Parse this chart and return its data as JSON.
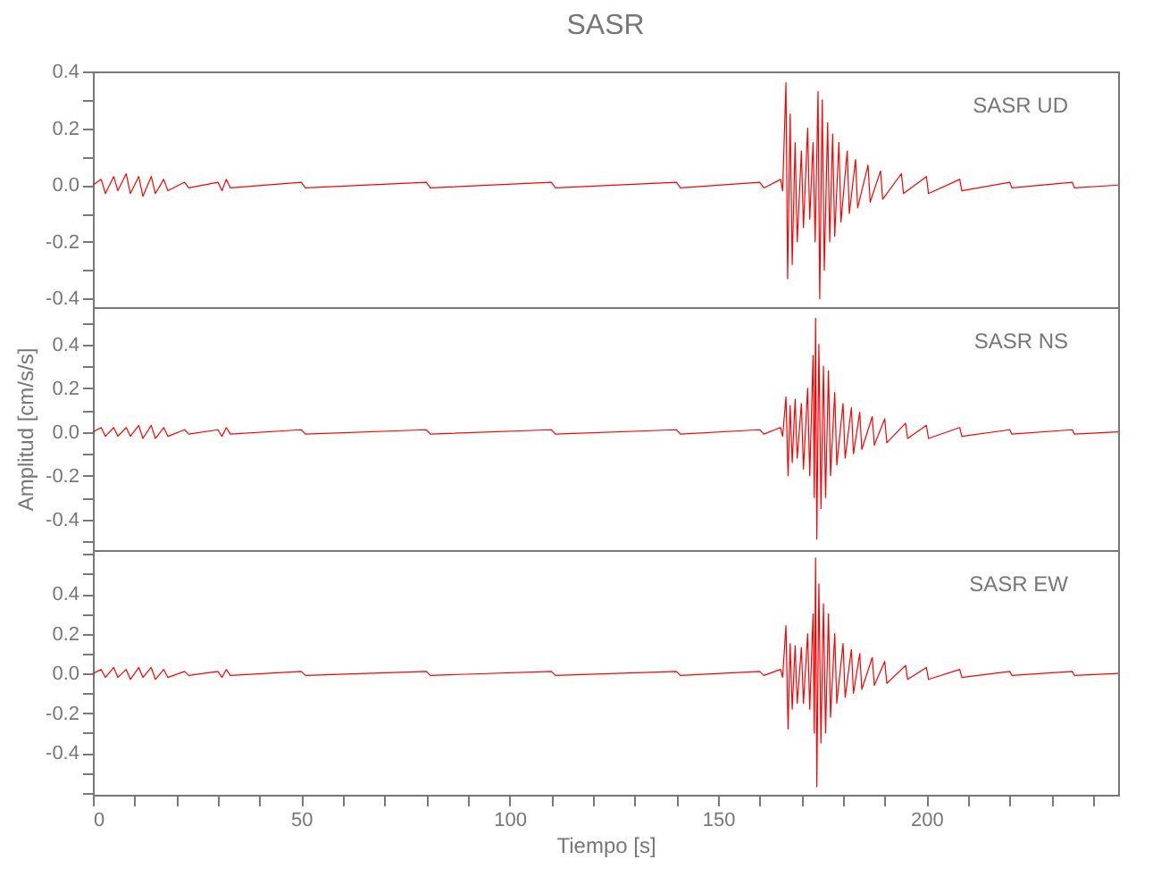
{
  "chart_data": [
    {
      "type": "line",
      "title": "SASR",
      "legend": false,
      "grid": false,
      "tick_labels": "y",
      "xlim": [
        0,
        246
      ],
      "ylim": [
        -0.43,
        0.4
      ],
      "xticks": [
        0,
        {
          "value": 10,
          "label": null
        },
        {
          "value": 20,
          "label": null
        },
        {
          "value": 30,
          "label": null
        },
        {
          "value": 40,
          "label": null
        },
        50,
        {
          "value": 60,
          "label": null
        },
        {
          "value": 70,
          "label": null
        },
        {
          "value": 80,
          "label": null
        },
        {
          "value": 90,
          "label": null
        },
        100,
        {
          "value": 110,
          "label": null
        },
        {
          "value": 120,
          "label": null
        },
        {
          "value": 130,
          "label": null
        },
        {
          "value": 140,
          "label": null
        },
        150,
        {
          "value": 160,
          "label": null
        },
        {
          "value": 170,
          "label": null
        },
        {
          "value": 180,
          "label": null
        },
        {
          "value": 190,
          "label": null
        },
        200,
        {
          "value": 210,
          "label": null
        },
        {
          "value": 220,
          "label": null
        },
        {
          "value": 230,
          "label": null
        },
        {
          "value": 240,
          "label": null
        }
      ],
      "yticks": [
        -0.4,
        {
          "value": -0.3,
          "label": null
        },
        -0.2,
        {
          "value": -0.1,
          "label": null
        },
        {
          "value": 0,
          "label": "0.0"
        },
        {
          "value": 0.1,
          "label": null
        },
        0.2,
        {
          "value": 0.3,
          "label": null
        },
        0.4
      ],
      "series": [
        {
          "name": "SASR UD",
          "color": "#ff0000",
          "x": [
            0,
            2,
            3,
            5,
            6,
            8,
            9,
            11,
            12,
            14,
            15,
            17,
            18,
            22,
            23,
            30,
            31,
            32,
            33,
            50,
            51,
            80,
            81,
            110,
            111,
            140,
            141,
            160,
            161,
            165,
            165.5,
            166.3,
            166.7,
            167.3,
            167.8,
            168.5,
            169,
            170,
            170.5,
            171.5,
            172,
            172.8,
            173.3,
            174,
            174.4,
            175,
            175.5,
            176.3,
            176.8,
            177.5,
            178,
            179,
            179.5,
            181,
            181.5,
            183,
            183.5,
            186,
            186.5,
            189,
            189.5,
            194,
            194.5,
            200,
            200.5,
            208,
            208.5,
            220,
            220.5,
            235,
            235.5,
            246
          ],
          "values": [
            0,
            0.02,
            -0.03,
            0.03,
            -0.02,
            0.04,
            -0.03,
            0.03,
            -0.04,
            0.03,
            -0.03,
            0.02,
            -0.02,
            0.01,
            -0.01,
            0.01,
            -0.02,
            0.02,
            -0.01,
            0.01,
            -0.01,
            0.01,
            -0.01,
            0.01,
            -0.01,
            0.01,
            -0.01,
            0.01,
            -0.01,
            0.02,
            -0.02,
            0.36,
            -0.33,
            0.25,
            -0.28,
            0.15,
            -0.2,
            0.12,
            -0.15,
            0.2,
            -0.12,
            0.15,
            -0.2,
            0.33,
            -0.4,
            0.3,
            -0.3,
            0.22,
            -0.2,
            0.18,
            -0.18,
            0.15,
            -0.13,
            0.12,
            -0.1,
            0.09,
            -0.08,
            0.07,
            -0.06,
            0.05,
            -0.05,
            0.04,
            -0.03,
            0.03,
            -0.03,
            0.02,
            -0.02,
            0.01,
            -0.01,
            0.01,
            -0.01,
            0
          ]
        }
      ]
    },
    {
      "type": "line",
      "ylabel": "Amplitud [cm/s/s]",
      "legend": false,
      "grid": false,
      "tick_labels": "y",
      "xlim": [
        0,
        246
      ],
      "ylim": [
        -0.54,
        0.57
      ],
      "xticks": [
        0,
        {
          "value": 10,
          "label": null
        },
        {
          "value": 20,
          "label": null
        },
        {
          "value": 30,
          "label": null
        },
        {
          "value": 40,
          "label": null
        },
        50,
        {
          "value": 60,
          "label": null
        },
        {
          "value": 70,
          "label": null
        },
        {
          "value": 80,
          "label": null
        },
        {
          "value": 90,
          "label": null
        },
        100,
        {
          "value": 110,
          "label": null
        },
        {
          "value": 120,
          "label": null
        },
        {
          "value": 130,
          "label": null
        },
        {
          "value": 140,
          "label": null
        },
        150,
        {
          "value": 160,
          "label": null
        },
        {
          "value": 170,
          "label": null
        },
        {
          "value": 180,
          "label": null
        },
        {
          "value": 190,
          "label": null
        },
        200,
        {
          "value": 210,
          "label": null
        },
        {
          "value": 220,
          "label": null
        },
        {
          "value": 230,
          "label": null
        },
        {
          "value": 240,
          "label": null
        }
      ],
      "yticks": [
        {
          "value": -0.5,
          "label": null
        },
        -0.4,
        {
          "value": -0.3,
          "label": null
        },
        -0.2,
        {
          "value": -0.1,
          "label": null
        },
        {
          "value": 0,
          "label": "0.0"
        },
        {
          "value": 0.1,
          "label": null
        },
        0.2,
        {
          "value": 0.3,
          "label": null
        },
        0.4,
        {
          "value": 0.5,
          "label": null
        }
      ],
      "series": [
        {
          "name": "SASR NS",
          "color": "#ff0000",
          "x": [
            0,
            2,
            3,
            5,
            6,
            8,
            9,
            11,
            12,
            14,
            15,
            17,
            18,
            22,
            23,
            30,
            31,
            32,
            33,
            50,
            51,
            80,
            81,
            110,
            111,
            140,
            141,
            160,
            161,
            165,
            165.5,
            166.3,
            166.8,
            167.3,
            167.8,
            168.5,
            169,
            170,
            170.5,
            171.5,
            172,
            172.8,
            173.1,
            173.4,
            173.7,
            174.2,
            174.7,
            175.3,
            175.8,
            176.5,
            177,
            178,
            178.5,
            180,
            180.5,
            182,
            182.5,
            184,
            184.5,
            187,
            187.5,
            190,
            190.5,
            195,
            195.5,
            200,
            200.5,
            208,
            208.5,
            220,
            220.5,
            235,
            235.5,
            246
          ],
          "values": [
            0,
            0.02,
            -0.02,
            0.02,
            -0.02,
            0.02,
            -0.02,
            0.03,
            -0.03,
            0.03,
            -0.03,
            0.02,
            -0.02,
            0.01,
            -0.01,
            0.01,
            -0.02,
            0.02,
            -0.01,
            0.01,
            -0.01,
            0.01,
            -0.01,
            0.01,
            -0.01,
            0.01,
            -0.01,
            0.01,
            -0.01,
            0.02,
            -0.02,
            0.16,
            -0.2,
            0.12,
            -0.14,
            0.15,
            -0.12,
            0.13,
            -0.17,
            0.2,
            -0.2,
            0.35,
            -0.3,
            0.52,
            -0.49,
            0.4,
            -0.35,
            0.3,
            -0.3,
            0.28,
            -0.2,
            0.18,
            -0.15,
            0.13,
            -0.12,
            0.11,
            -0.1,
            0.09,
            -0.08,
            0.07,
            -0.06,
            0.06,
            -0.05,
            0.04,
            -0.03,
            0.03,
            -0.03,
            0.02,
            -0.02,
            0.01,
            -0.01,
            0.01,
            -0.01,
            0
          ]
        }
      ]
    },
    {
      "type": "line",
      "xlabel": "Tiempo [s]",
      "legend": false,
      "grid": false,
      "xlim": [
        0,
        246
      ],
      "ylim": [
        -0.61,
        0.62
      ],
      "xticks": [
        0,
        {
          "value": 10,
          "label": null
        },
        {
          "value": 20,
          "label": null
        },
        {
          "value": 30,
          "label": null
        },
        {
          "value": 40,
          "label": null
        },
        50,
        {
          "value": 60,
          "label": null
        },
        {
          "value": 70,
          "label": null
        },
        {
          "value": 80,
          "label": null
        },
        {
          "value": 90,
          "label": null
        },
        100,
        {
          "value": 110,
          "label": null
        },
        {
          "value": 120,
          "label": null
        },
        {
          "value": 130,
          "label": null
        },
        {
          "value": 140,
          "label": null
        },
        150,
        {
          "value": 160,
          "label": null
        },
        {
          "value": 170,
          "label": null
        },
        {
          "value": 180,
          "label": null
        },
        {
          "value": 190,
          "label": null
        },
        200,
        {
          "value": 210,
          "label": null
        },
        {
          "value": 220,
          "label": null
        },
        {
          "value": 230,
          "label": null
        },
        {
          "value": 240,
          "label": null
        }
      ],
      "yticks": [
        {
          "value": -0.6,
          "label": null
        },
        {
          "value": -0.5,
          "label": null
        },
        -0.4,
        {
          "value": -0.3,
          "label": null
        },
        -0.2,
        {
          "value": -0.1,
          "label": null
        },
        {
          "value": 0,
          "label": "0.0"
        },
        {
          "value": 0.1,
          "label": null
        },
        0.2,
        {
          "value": 0.3,
          "label": null
        },
        0.4,
        {
          "value": 0.5,
          "label": null
        },
        {
          "value": 0.6,
          "label": null
        }
      ],
      "series": [
        {
          "name": "SASR EW",
          "color": "#ff0000",
          "x": [
            0,
            2,
            3,
            5,
            6,
            8,
            9,
            11,
            12,
            14,
            15,
            17,
            18,
            22,
            23,
            30,
            31,
            32,
            33,
            50,
            51,
            80,
            81,
            110,
            111,
            140,
            141,
            160,
            161,
            165,
            165.5,
            166.3,
            166.8,
            167.3,
            167.8,
            168.5,
            169,
            170,
            170.5,
            171.5,
            172,
            172.8,
            173.1,
            173.4,
            173.7,
            174.2,
            174.7,
            175.3,
            175.8,
            176.5,
            177,
            178,
            178.5,
            180,
            180.5,
            182,
            182.5,
            184,
            184.5,
            187,
            187.5,
            190,
            190.5,
            195,
            195.5,
            200,
            200.5,
            208,
            208.5,
            220,
            220.5,
            235,
            235.5,
            246
          ],
          "values": [
            0,
            0.02,
            -0.02,
            0.03,
            -0.02,
            0.02,
            -0.03,
            0.03,
            -0.02,
            0.03,
            -0.03,
            0.02,
            -0.02,
            0.01,
            -0.01,
            0.01,
            -0.02,
            0.02,
            -0.01,
            0.01,
            -0.01,
            0.01,
            -0.01,
            0.01,
            -0.01,
            0.01,
            -0.01,
            0.01,
            -0.01,
            0.02,
            -0.02,
            0.24,
            -0.28,
            0.15,
            -0.18,
            0.14,
            -0.15,
            0.13,
            -0.15,
            0.2,
            -0.18,
            0.3,
            -0.3,
            0.58,
            -0.57,
            0.45,
            -0.35,
            0.35,
            -0.3,
            0.3,
            -0.22,
            0.2,
            -0.15,
            0.15,
            -0.12,
            0.12,
            -0.1,
            0.1,
            -0.08,
            0.08,
            -0.06,
            0.06,
            -0.05,
            0.04,
            -0.03,
            0.03,
            -0.03,
            0.02,
            -0.02,
            0.01,
            -0.01,
            0.01,
            -0.01,
            0
          ]
        }
      ]
    }
  ]
}
